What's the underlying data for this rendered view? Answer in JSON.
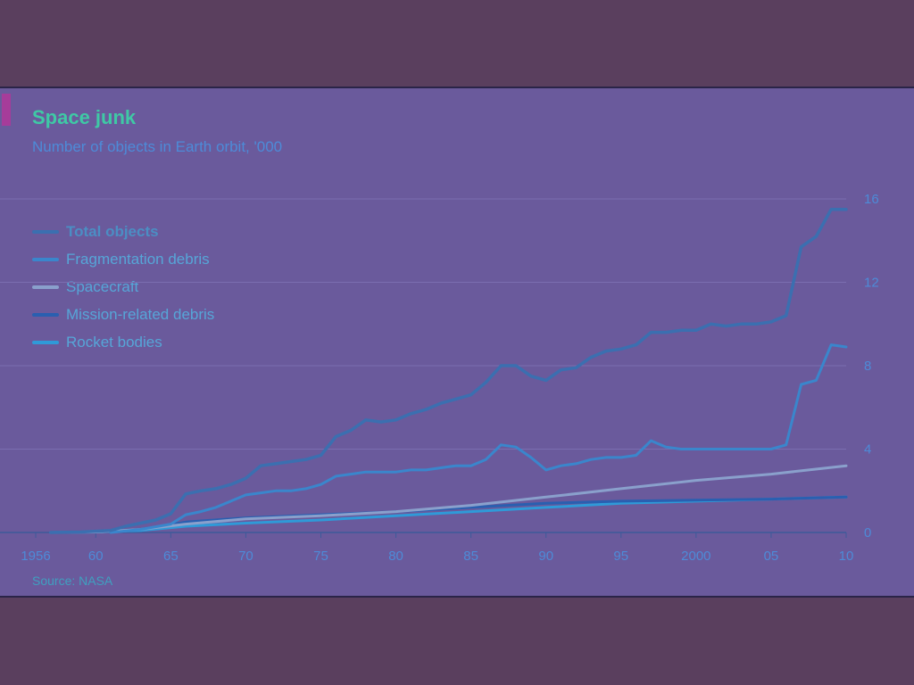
{
  "chart_data": {
    "type": "line",
    "title": "Space junk",
    "subtitle": "Number of objects in Earth orbit, '000",
    "source": "Source: NASA",
    "xlim": [
      1956,
      2010
    ],
    "ylim": [
      0,
      16
    ],
    "y_ticks": [
      0,
      4,
      8,
      12,
      16
    ],
    "x_ticks": [
      {
        "value": 1956,
        "label": "1956"
      },
      {
        "value": 1960,
        "label": "60"
      },
      {
        "value": 1965,
        "label": "65"
      },
      {
        "value": 1970,
        "label": "70"
      },
      {
        "value": 1975,
        "label": "75"
      },
      {
        "value": 1980,
        "label": "80"
      },
      {
        "value": 1985,
        "label": "85"
      },
      {
        "value": 1990,
        "label": "90"
      },
      {
        "value": 1995,
        "label": "95"
      },
      {
        "value": 2000,
        "label": "2000"
      },
      {
        "value": 2005,
        "label": "05"
      },
      {
        "value": 2010,
        "label": "10"
      }
    ],
    "y_axis_position": "right",
    "grid": true,
    "legend_position": "top-left",
    "series": [
      {
        "name": "Total objects",
        "color": "#3b6fb0",
        "emphasis": true,
        "points": [
          [
            1957,
            0.0
          ],
          [
            1959,
            0.02
          ],
          [
            1961,
            0.1
          ],
          [
            1962,
            0.3
          ],
          [
            1963,
            0.45
          ],
          [
            1964,
            0.6
          ],
          [
            1965,
            0.9
          ],
          [
            1966,
            1.85
          ],
          [
            1967,
            2.0
          ],
          [
            1968,
            2.1
          ],
          [
            1969,
            2.3
          ],
          [
            1970,
            2.6
          ],
          [
            1971,
            3.2
          ],
          [
            1972,
            3.3
          ],
          [
            1973,
            3.4
          ],
          [
            1974,
            3.5
          ],
          [
            1975,
            3.7
          ],
          [
            1976,
            4.6
          ],
          [
            1977,
            4.9
          ],
          [
            1978,
            5.4
          ],
          [
            1979,
            5.3
          ],
          [
            1980,
            5.4
          ],
          [
            1981,
            5.7
          ],
          [
            1982,
            5.9
          ],
          [
            1983,
            6.2
          ],
          [
            1984,
            6.4
          ],
          [
            1985,
            6.6
          ],
          [
            1986,
            7.2
          ],
          [
            1987,
            8.0
          ],
          [
            1988,
            8.0
          ],
          [
            1989,
            7.5
          ],
          [
            1990,
            7.3
          ],
          [
            1991,
            7.8
          ],
          [
            1992,
            7.9
          ],
          [
            1993,
            8.4
          ],
          [
            1994,
            8.7
          ],
          [
            1995,
            8.8
          ],
          [
            1996,
            9.0
          ],
          [
            1997,
            9.6
          ],
          [
            1998,
            9.6
          ],
          [
            1999,
            9.7
          ],
          [
            2000,
            9.7
          ],
          [
            2001,
            10.0
          ],
          [
            2002,
            9.9
          ],
          [
            2003,
            10.0
          ],
          [
            2004,
            10.0
          ],
          [
            2005,
            10.1
          ],
          [
            2006,
            10.4
          ],
          [
            2007,
            13.7
          ],
          [
            2008,
            14.2
          ],
          [
            2009,
            15.5
          ],
          [
            2010,
            15.5
          ]
        ]
      },
      {
        "name": "Fragmentation debris",
        "color": "#3a86cc",
        "emphasis": false,
        "points": [
          [
            1961,
            0.0
          ],
          [
            1963,
            0.15
          ],
          [
            1965,
            0.4
          ],
          [
            1966,
            0.85
          ],
          [
            1967,
            1.0
          ],
          [
            1968,
            1.2
          ],
          [
            1969,
            1.5
          ],
          [
            1970,
            1.8
          ],
          [
            1971,
            1.9
          ],
          [
            1972,
            2.0
          ],
          [
            1973,
            2.0
          ],
          [
            1974,
            2.1
          ],
          [
            1975,
            2.3
          ],
          [
            1976,
            2.7
          ],
          [
            1977,
            2.8
          ],
          [
            1978,
            2.9
          ],
          [
            1979,
            2.9
          ],
          [
            1980,
            2.9
          ],
          [
            1981,
            3.0
          ],
          [
            1982,
            3.0
          ],
          [
            1983,
            3.1
          ],
          [
            1984,
            3.2
          ],
          [
            1985,
            3.2
          ],
          [
            1986,
            3.5
          ],
          [
            1987,
            4.2
          ],
          [
            1988,
            4.1
          ],
          [
            1989,
            3.6
          ],
          [
            1990,
            3.0
          ],
          [
            1991,
            3.2
          ],
          [
            1992,
            3.3
          ],
          [
            1993,
            3.5
          ],
          [
            1994,
            3.6
          ],
          [
            1995,
            3.6
          ],
          [
            1996,
            3.7
          ],
          [
            1997,
            4.4
          ],
          [
            1998,
            4.1
          ],
          [
            1999,
            4.0
          ],
          [
            2000,
            4.0
          ],
          [
            2001,
            4.0
          ],
          [
            2002,
            4.0
          ],
          [
            2003,
            4.0
          ],
          [
            2004,
            4.0
          ],
          [
            2005,
            4.0
          ],
          [
            2006,
            4.2
          ],
          [
            2007,
            7.1
          ],
          [
            2008,
            7.3
          ],
          [
            2009,
            9.0
          ],
          [
            2010,
            8.9
          ]
        ]
      },
      {
        "name": "Spacecraft",
        "color": "#8aa0cc",
        "emphasis": false,
        "points": [
          [
            1957,
            0.0
          ],
          [
            1960,
            0.02
          ],
          [
            1963,
            0.15
          ],
          [
            1966,
            0.4
          ],
          [
            1970,
            0.65
          ],
          [
            1975,
            0.8
          ],
          [
            1980,
            1.0
          ],
          [
            1985,
            1.3
          ],
          [
            1990,
            1.7
          ],
          [
            1995,
            2.1
          ],
          [
            2000,
            2.5
          ],
          [
            2005,
            2.8
          ],
          [
            2010,
            3.2
          ]
        ]
      },
      {
        "name": "Mission-related debris",
        "color": "#2a5fb0",
        "emphasis": false,
        "points": [
          [
            1957,
            0.0
          ],
          [
            1960,
            0.02
          ],
          [
            1963,
            0.15
          ],
          [
            1966,
            0.5
          ],
          [
            1970,
            0.7
          ],
          [
            1975,
            0.85
          ],
          [
            1980,
            1.0
          ],
          [
            1985,
            1.2
          ],
          [
            1990,
            1.4
          ],
          [
            1995,
            1.5
          ],
          [
            2000,
            1.55
          ],
          [
            2005,
            1.6
          ],
          [
            2010,
            1.7
          ]
        ]
      },
      {
        "name": "Rocket bodies",
        "color": "#2f9ad8",
        "emphasis": false,
        "points": [
          [
            1957,
            0.0
          ],
          [
            1960,
            0.02
          ],
          [
            1963,
            0.1
          ],
          [
            1966,
            0.3
          ],
          [
            1970,
            0.45
          ],
          [
            1975,
            0.6
          ],
          [
            1980,
            0.8
          ],
          [
            1985,
            1.0
          ],
          [
            1990,
            1.2
          ],
          [
            1995,
            1.4
          ],
          [
            2000,
            1.5
          ],
          [
            2005,
            1.6
          ],
          [
            2010,
            1.7
          ]
        ]
      }
    ]
  }
}
